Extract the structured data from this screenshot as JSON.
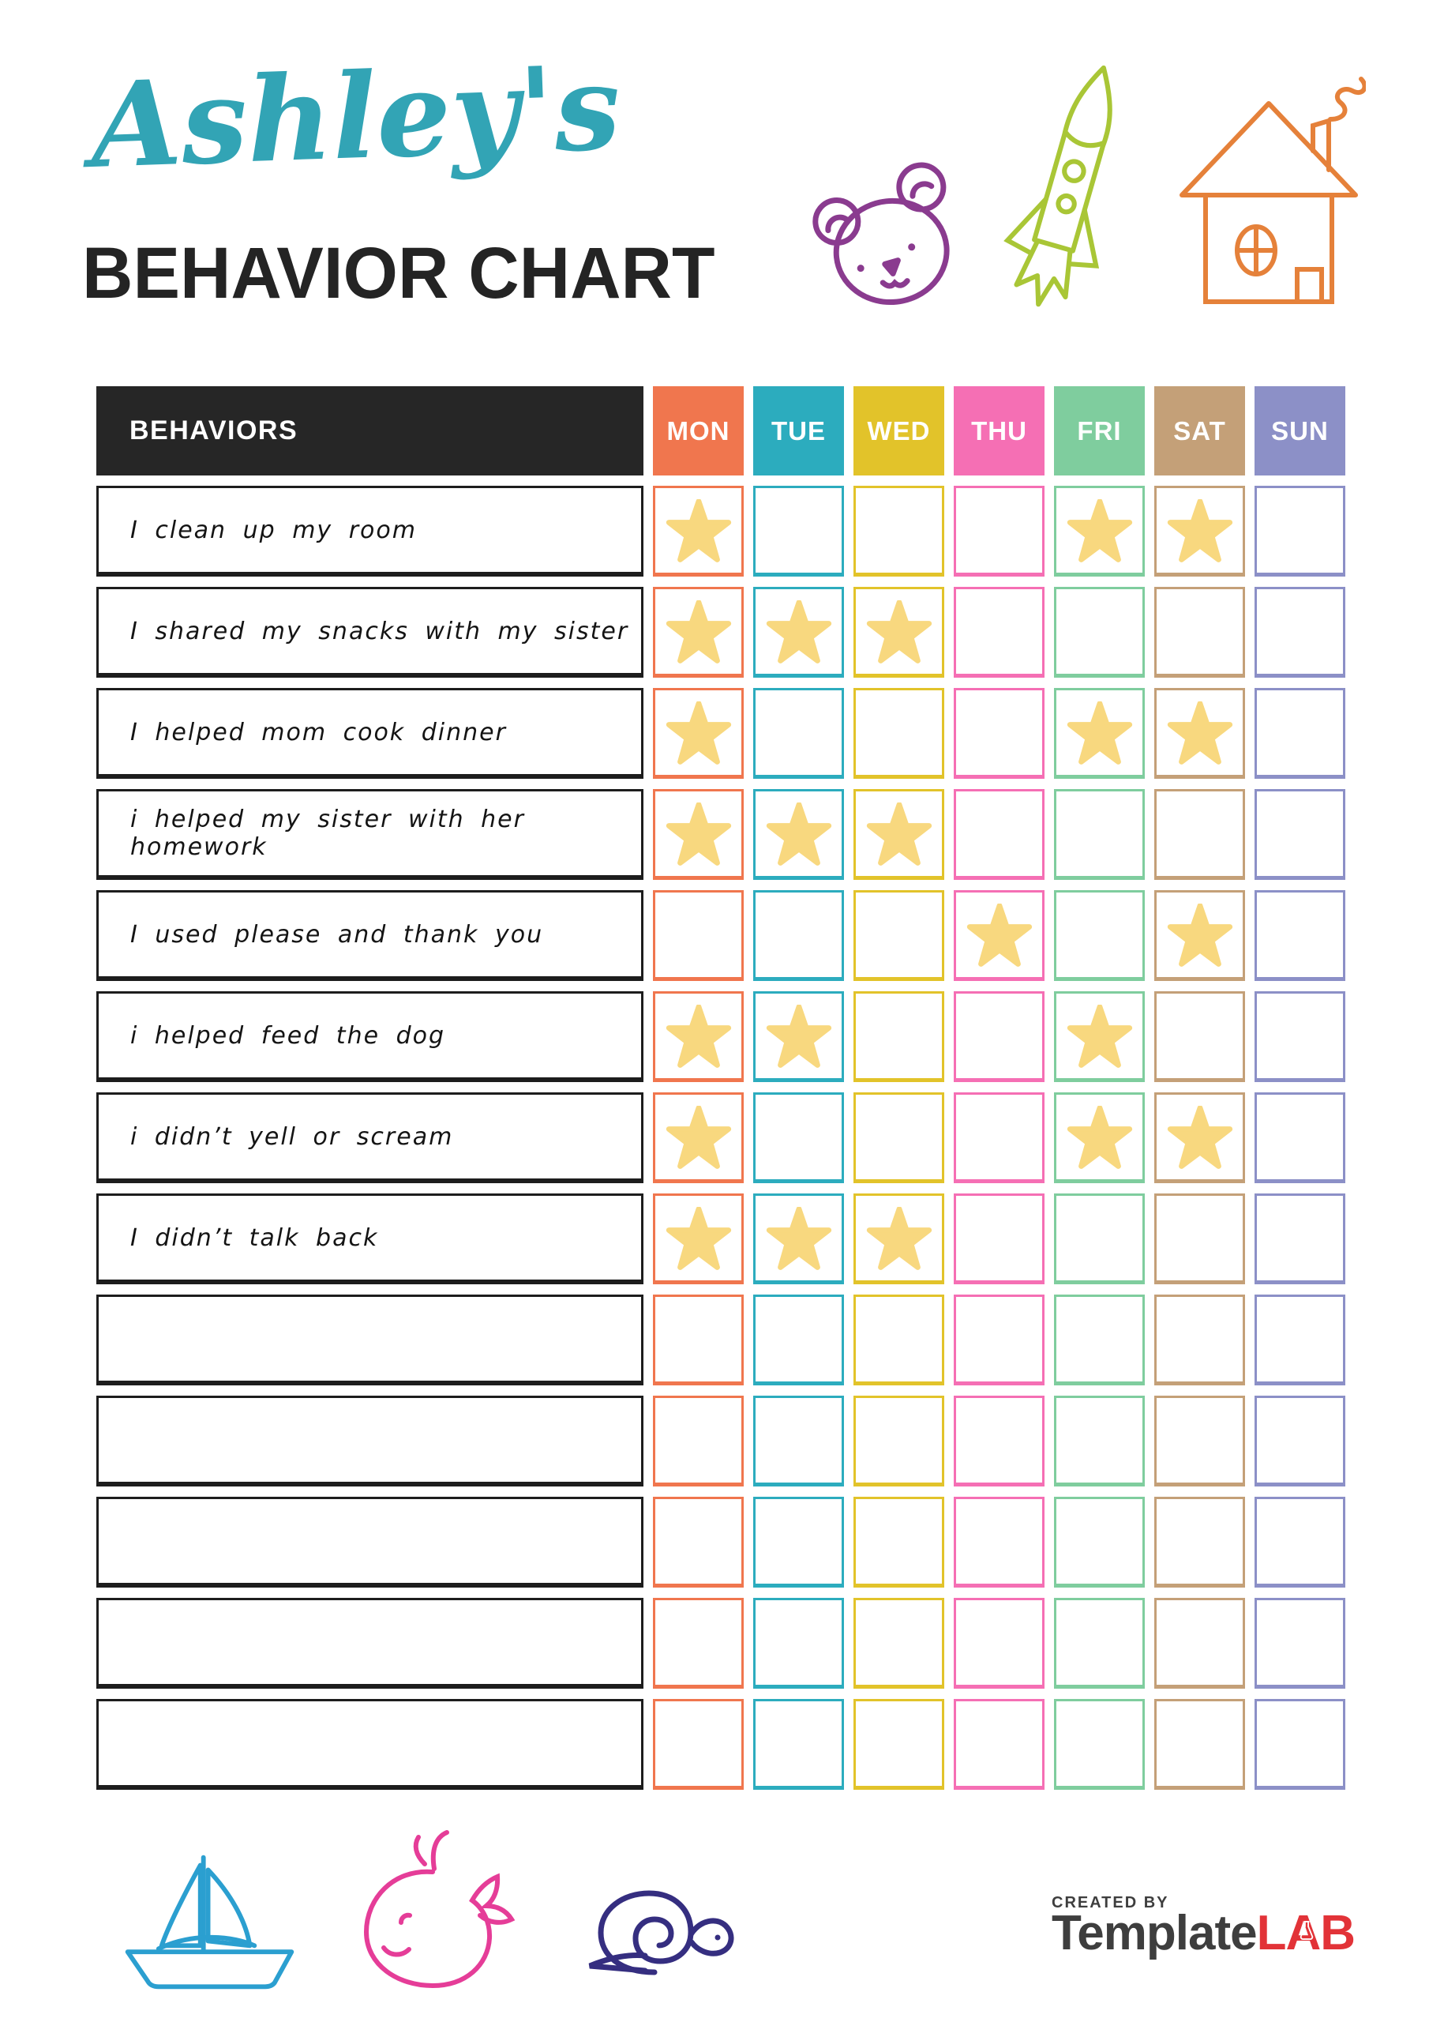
{
  "header": {
    "child_name": "Ashley's",
    "title": "BEHAVIOR CHART",
    "accent_color": "#32A4B5"
  },
  "doodles": {
    "bear_color": "#8A3B8F",
    "rocket_color": "#A9C636",
    "house_color": "#E5813A",
    "sailboat_color": "#2B9FD0",
    "whale_color": "#E53D98",
    "snail_color": "#352E80"
  },
  "table": {
    "behaviors_header": "BEHAVIORS",
    "header_bg": "#262626",
    "star_color": "#F8D87F",
    "days": [
      {
        "label": "MON",
        "color": "#F0764E"
      },
      {
        "label": "TUE",
        "color": "#2CACBE"
      },
      {
        "label": "WED",
        "color": "#E2C32A"
      },
      {
        "label": "THU",
        "color": "#F56FB4"
      },
      {
        "label": "FRI",
        "color": "#7FCD9E"
      },
      {
        "label": "SAT",
        "color": "#C4A078"
      },
      {
        "label": "SUN",
        "color": "#8C90C7"
      }
    ],
    "rows": [
      {
        "label": "I clean up my room",
        "stars": [
          0,
          4,
          5
        ]
      },
      {
        "label": "I shared my snacks with my sister",
        "stars": [
          0,
          1,
          2
        ]
      },
      {
        "label": "I helped mom cook dinner",
        "stars": [
          0,
          4,
          5
        ]
      },
      {
        "label": "i helped my sister with her homework",
        "stars": [
          0,
          1,
          2
        ]
      },
      {
        "label": "I used please and thank you",
        "stars": [
          3,
          5
        ]
      },
      {
        "label": "i helped feed the dog",
        "stars": [
          0,
          1,
          4
        ]
      },
      {
        "label": "i didn’t yell or scream",
        "stars": [
          0,
          4,
          5
        ]
      },
      {
        "label": "I didn’t talk back",
        "stars": [
          0,
          1,
          2
        ]
      },
      {
        "label": "",
        "stars": []
      },
      {
        "label": "",
        "stars": []
      },
      {
        "label": "",
        "stars": []
      },
      {
        "label": "",
        "stars": []
      },
      {
        "label": "",
        "stars": []
      }
    ]
  },
  "footer": {
    "created_by": "CREATED BY",
    "brand_dark": "Template",
    "brand_accent": "LAB",
    "brand_dark_color": "#3E3E3E",
    "brand_accent_color": "#E23338"
  }
}
